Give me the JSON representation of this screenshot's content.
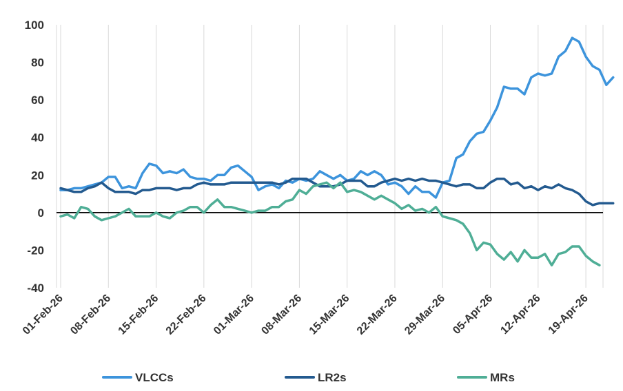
{
  "chart_data": {
    "type": "line",
    "title": "",
    "xlabel": "",
    "ylabel": "",
    "ylim": [
      -40,
      100
    ],
    "yticks": [
      "100",
      "80",
      "60",
      "40",
      "20",
      "0",
      "-20",
      "-40"
    ],
    "grid": "vertical",
    "legend_position": "bottom",
    "x_tick_labels": [
      "01-Feb-26",
      "08-Feb-26",
      "15-Feb-26",
      "22-Feb-26",
      "01-Mar-26",
      "08-Mar-26",
      "15-Mar-26",
      "22-Mar-26",
      "29-Mar-26",
      "05-Apr-26",
      "12-Apr-26",
      "19-Apr-26"
    ],
    "x_start": "01-Feb-26",
    "x_interval_days": 1,
    "series": [
      {
        "name": "VLCCs",
        "color": "#3d94dc",
        "values": [
          12,
          12,
          13,
          13,
          14,
          15,
          16,
          19,
          19,
          13,
          14,
          13,
          21,
          26,
          25,
          21,
          22,
          21,
          23,
          19,
          18,
          18,
          17,
          20,
          20,
          24,
          25,
          22,
          19,
          12,
          14,
          15,
          13,
          17,
          16,
          18,
          17,
          18,
          22,
          20,
          18,
          20,
          17,
          18,
          22,
          20,
          22,
          20,
          15,
          16,
          14,
          10,
          14,
          11,
          11,
          8,
          16,
          17,
          29,
          31,
          38,
          42,
          43,
          49,
          56,
          67,
          66,
          66,
          63,
          72,
          74,
          73,
          74,
          83,
          86,
          93,
          91,
          83,
          78,
          76,
          68,
          72
        ]
      },
      {
        "name": "LR2s",
        "color": "#235a8f",
        "values": [
          13,
          12,
          11,
          11,
          13,
          14,
          16,
          13,
          11,
          11,
          11,
          10,
          12,
          12,
          13,
          13,
          13,
          12,
          13,
          13,
          15,
          16,
          15,
          15,
          15,
          16,
          16,
          16,
          16,
          16,
          16,
          16,
          15,
          16,
          18,
          18,
          18,
          16,
          14,
          14,
          14,
          15,
          17,
          17,
          17,
          14,
          14,
          16,
          17,
          18,
          17,
          18,
          17,
          18,
          17,
          17,
          16,
          15,
          14,
          15,
          15,
          13,
          13,
          16,
          18,
          18,
          15,
          16,
          13,
          14,
          12,
          14,
          13,
          15,
          13,
          12,
          10,
          6,
          4,
          5,
          5,
          5
        ]
      },
      {
        "name": "MRs",
        "color": "#4fae96",
        "values": [
          -2,
          -1,
          -3,
          3,
          2,
          -2,
          -4,
          -3,
          -2,
          0,
          2,
          -2,
          -2,
          -2,
          0,
          -2,
          -3,
          0,
          1,
          3,
          3,
          0,
          4,
          7,
          3,
          3,
          2,
          1,
          0,
          1,
          1,
          3,
          3,
          6,
          7,
          12,
          10,
          14,
          15,
          16,
          13,
          16,
          11,
          12,
          11,
          9,
          7,
          9,
          7,
          5,
          2,
          4,
          1,
          2,
          0,
          3,
          -2,
          -3,
          -4,
          -6,
          -11,
          -20,
          -16,
          -17,
          -22,
          -25,
          -21,
          -26,
          -20,
          -24,
          -24,
          -22,
          -28,
          -22,
          -21,
          -18,
          -18,
          -23,
          -26,
          -28
        ]
      }
    ]
  }
}
